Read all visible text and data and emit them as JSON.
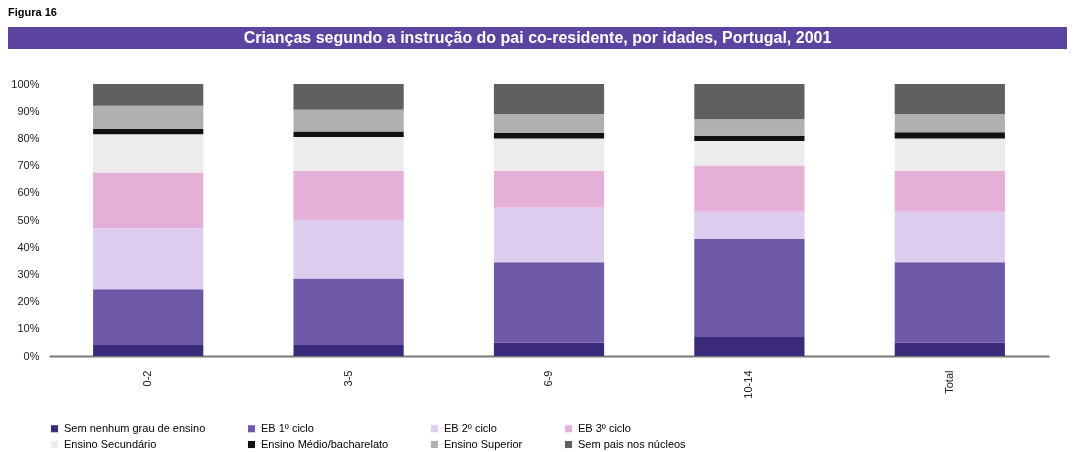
{
  "chart_data": {
    "type": "bar",
    "stacked": true,
    "title": "Crianças segundo a instrução do pai co-residente, por idades, Portugal, 2001",
    "annotations": [
      "Figura 16"
    ],
    "categories": [
      "0-2",
      "3-5",
      "6-9",
      "10-14",
      "Total"
    ],
    "series": [
      {
        "name": "Sem nenhum grau de ensino",
        "color": "#3b2a7a",
        "values": [
          4,
          4,
          5,
          7,
          5
        ]
      },
      {
        "name": "EB 1º ciclo",
        "color": "#6e58a8",
        "values": [
          20.5,
          24.5,
          29.5,
          36,
          29.5
        ]
      },
      {
        "name": "EB 2º ciclo",
        "color": "#dccdee",
        "values": [
          22.5,
          21.5,
          20,
          10,
          18.5
        ]
      },
      {
        "name": "EB 3º ciclo",
        "color": "#e4b0d8",
        "values": [
          20.5,
          18,
          13.5,
          17,
          15
        ]
      },
      {
        "name": "Ensino Secundário",
        "color": "#ececec",
        "values": [
          14,
          12.5,
          12,
          9,
          12
        ]
      },
      {
        "name": "Ensino Médio/bacharelato",
        "color": "#111111",
        "values": [
          2,
          2,
          2,
          2,
          2.3
        ]
      },
      {
        "name": "Ensino Superior",
        "color": "#b0b0b0",
        "values": [
          8.5,
          8,
          7,
          6,
          6.7
        ]
      },
      {
        "name": "Sem pais nos núcleos",
        "color": "#606060",
        "values": [
          8,
          9.5,
          11,
          13,
          11
        ]
      }
    ],
    "ylim": [
      0,
      100
    ],
    "yticks": [
      {
        "value": 0,
        "label": "0%"
      },
      {
        "value": 10,
        "label": "10%"
      },
      {
        "value": 20,
        "label": "20%"
      },
      {
        "value": 30,
        "label": "30%"
      },
      {
        "value": 40,
        "label": "40%"
      },
      {
        "value": 50,
        "label": "50%"
      },
      {
        "value": 60,
        "label": "60%"
      },
      {
        "value": 70,
        "label": "70%"
      },
      {
        "value": 80,
        "label": "80%"
      },
      {
        "value": 90,
        "label": "90%"
      },
      {
        "value": 100,
        "label": "100%"
      }
    ],
    "grid": false,
    "legend": "bottom"
  }
}
